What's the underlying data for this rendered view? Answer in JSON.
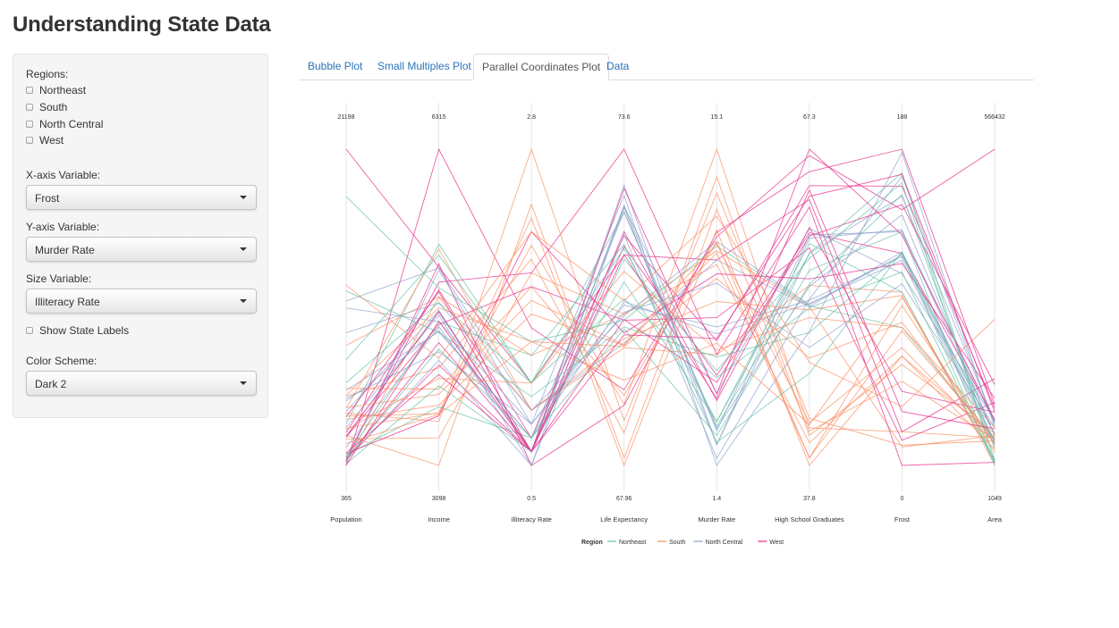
{
  "page": {
    "title": "Understanding State Data"
  },
  "sidebar": {
    "regions_label": "Regions:",
    "regions": [
      {
        "label": "Northeast",
        "checked": false
      },
      {
        "label": "South",
        "checked": false
      },
      {
        "label": "North Central",
        "checked": false
      },
      {
        "label": "West",
        "checked": false
      }
    ],
    "x_axis": {
      "label": "X-axis Variable:",
      "value": "Frost"
    },
    "y_axis": {
      "label": "Y-axis Variable:",
      "value": "Murder Rate"
    },
    "size": {
      "label": "Size Variable:",
      "value": "Illiteracy Rate"
    },
    "show_labels": {
      "label": "Show State Labels",
      "checked": false
    },
    "color_scheme": {
      "label": "Color Scheme:",
      "value": "Dark 2"
    }
  },
  "tabs": [
    {
      "label": "Bubble Plot",
      "active": false
    },
    {
      "label": "Small Multiples Plot",
      "active": false
    },
    {
      "label": "Parallel Coordinates Plot",
      "active": true
    },
    {
      "label": "Data",
      "active": false
    }
  ],
  "chart_data": {
    "type": "parallel_coordinates",
    "axes": [
      {
        "name": "Population",
        "min": "365",
        "max": "21198",
        "lo": 365,
        "hi": 21198
      },
      {
        "name": "Income",
        "min": "3098",
        "max": "6315",
        "lo": 3098,
        "hi": 6315
      },
      {
        "name": "Illiteracy Rate",
        "min": "0.5",
        "max": "2.8",
        "lo": 0.5,
        "hi": 2.8
      },
      {
        "name": "Life Expectancy",
        "min": "67.96",
        "max": "73.6",
        "lo": 67.96,
        "hi": 73.6
      },
      {
        "name": "Murder Rate",
        "min": "1.4",
        "max": "15.1",
        "lo": 1.4,
        "hi": 15.1
      },
      {
        "name": "High School Graduates",
        "min": "37.8",
        "max": "67.3",
        "lo": 37.8,
        "hi": 67.3
      },
      {
        "name": "Frost",
        "min": "0",
        "max": "188",
        "lo": 0,
        "hi": 188
      },
      {
        "name": "Area",
        "min": "1049",
        "max": "566432",
        "lo": 1049,
        "hi": 566432
      }
    ],
    "legend": {
      "title": "Region",
      "placement": "bottom",
      "entries": [
        {
          "name": "Northeast",
          "color": "#66c2a5"
        },
        {
          "name": "South",
          "color": "#fc8d62"
        },
        {
          "name": "North Central",
          "color": "#8da0cb"
        },
        {
          "name": "West",
          "color": "#e7298a"
        }
      ]
    },
    "series": [
      {
        "region": "South",
        "values": [
          3615,
          3624,
          2.1,
          69.05,
          15.1,
          41.3,
          20,
          50708
        ]
      },
      {
        "region": "West",
        "values": [
          365,
          6315,
          1.5,
          69.31,
          11.3,
          66.7,
          152,
          566432
        ]
      },
      {
        "region": "West",
        "values": [
          2212,
          4530,
          1.8,
          70.55,
          7.8,
          58.1,
          15,
          113417
        ]
      },
      {
        "region": "South",
        "values": [
          2110,
          3378,
          1.9,
          70.66,
          10.1,
          39.9,
          65,
          51945
        ]
      },
      {
        "region": "West",
        "values": [
          21198,
          5114,
          1.1,
          71.71,
          10.3,
          62.6,
          20,
          156361
        ]
      },
      {
        "region": "West",
        "values": [
          2541,
          4884,
          0.7,
          72.06,
          6.8,
          63.9,
          166,
          103766
        ]
      },
      {
        "region": "Northeast",
        "values": [
          3100,
          5348,
          1.1,
          72.48,
          3.1,
          56.0,
          139,
          4862
        ]
      },
      {
        "region": "South",
        "values": [
          579,
          4809,
          0.9,
          70.06,
          6.2,
          54.6,
          103,
          1982
        ]
      },
      {
        "region": "South",
        "values": [
          8277,
          4815,
          1.3,
          70.66,
          10.7,
          52.6,
          11,
          54090
        ]
      },
      {
        "region": "South",
        "values": [
          4931,
          4091,
          2.0,
          68.54,
          13.9,
          40.6,
          60,
          58073
        ]
      },
      {
        "region": "West",
        "values": [
          868,
          4963,
          1.9,
          73.6,
          6.2,
          61.9,
          0,
          6425
        ]
      },
      {
        "region": "West",
        "values": [
          813,
          4119,
          0.6,
          71.87,
          5.3,
          59.5,
          126,
          82677
        ]
      },
      {
        "region": "North Central",
        "values": [
          11197,
          5107,
          0.9,
          70.14,
          10.3,
          52.6,
          127,
          55748
        ]
      },
      {
        "region": "North Central",
        "values": [
          5313,
          4458,
          0.7,
          70.88,
          7.1,
          52.9,
          122,
          36097
        ]
      },
      {
        "region": "North Central",
        "values": [
          2861,
          4628,
          0.5,
          72.56,
          2.3,
          59.0,
          140,
          55941
        ]
      },
      {
        "region": "North Central",
        "values": [
          2280,
          4669,
          0.6,
          72.58,
          4.5,
          59.9,
          114,
          81787
        ]
      },
      {
        "region": "South",
        "values": [
          3387,
          3712,
          1.6,
          70.1,
          10.6,
          38.5,
          95,
          39650
        ]
      },
      {
        "region": "South",
        "values": [
          3806,
          3545,
          2.8,
          68.76,
          13.2,
          42.2,
          12,
          44930
        ]
      },
      {
        "region": "Northeast",
        "values": [
          1058,
          3694,
          0.7,
          70.39,
          2.7,
          54.7,
          161,
          30920
        ]
      },
      {
        "region": "South",
        "values": [
          4122,
          5299,
          0.9,
          70.22,
          8.5,
          52.3,
          101,
          9891
        ]
      },
      {
        "region": "Northeast",
        "values": [
          5814,
          4755,
          1.1,
          71.83,
          3.3,
          58.5,
          103,
          7826
        ]
      },
      {
        "region": "North Central",
        "values": [
          9111,
          4751,
          0.9,
          70.63,
          11.1,
          52.8,
          125,
          56817
        ]
      },
      {
        "region": "North Central",
        "values": [
          3921,
          4675,
          0.6,
          72.96,
          2.3,
          57.6,
          160,
          79289
        ]
      },
      {
        "region": "South",
        "values": [
          2341,
          3098,
          2.4,
          68.09,
          12.5,
          41.0,
          50,
          47296
        ]
      },
      {
        "region": "North Central",
        "values": [
          4767,
          4254,
          0.8,
          70.69,
          9.3,
          48.8,
          108,
          68995
        ]
      },
      {
        "region": "West",
        "values": [
          746,
          4347,
          0.6,
          70.56,
          5.0,
          59.2,
          155,
          145587
        ]
      },
      {
        "region": "North Central",
        "values": [
          1544,
          4508,
          0.6,
          72.6,
          2.9,
          59.3,
          139,
          76483
        ]
      },
      {
        "region": "West",
        "values": [
          590,
          5149,
          0.5,
          69.03,
          11.5,
          65.2,
          188,
          109889
        ]
      },
      {
        "region": "Northeast",
        "values": [
          812,
          4281,
          0.7,
          71.23,
          3.3,
          57.6,
          174,
          9027
        ]
      },
      {
        "region": "Northeast",
        "values": [
          7333,
          5237,
          1.1,
          70.93,
          5.2,
          52.5,
          115,
          7521
        ]
      },
      {
        "region": "West",
        "values": [
          1144,
          3601,
          2.2,
          70.32,
          9.7,
          55.2,
          120,
          121412
        ]
      },
      {
        "region": "Northeast",
        "values": [
          18076,
          4903,
          1.4,
          70.55,
          10.9,
          52.7,
          82,
          47831
        ]
      },
      {
        "region": "South",
        "values": [
          5441,
          3875,
          1.8,
          69.21,
          11.1,
          38.5,
          80,
          48798
        ]
      },
      {
        "region": "North Central",
        "values": [
          637,
          5087,
          0.8,
          72.78,
          1.4,
          50.3,
          186,
          69273
        ]
      },
      {
        "region": "North Central",
        "values": [
          10735,
          4561,
          0.8,
          70.82,
          7.4,
          53.2,
          124,
          40975
        ]
      },
      {
        "region": "South",
        "values": [
          2715,
          3983,
          1.1,
          71.42,
          6.4,
          51.6,
          82,
          68782
        ]
      },
      {
        "region": "West",
        "values": [
          2284,
          4660,
          0.6,
          72.13,
          4.2,
          60.0,
          44,
          96184
        ]
      },
      {
        "region": "Northeast",
        "values": [
          11860,
          4449,
          1.0,
          70.43,
          6.1,
          50.2,
          126,
          44966
        ]
      },
      {
        "region": "Northeast",
        "values": [
          931,
          4558,
          1.3,
          71.9,
          2.4,
          46.4,
          127,
          1049
        ]
      },
      {
        "region": "South",
        "values": [
          2816,
          3635,
          2.3,
          67.96,
          11.6,
          37.8,
          65,
          30225
        ]
      },
      {
        "region": "North Central",
        "values": [
          681,
          4167,
          0.5,
          72.08,
          1.7,
          53.3,
          172,
          75955
        ]
      },
      {
        "region": "South",
        "values": [
          4173,
          3821,
          1.7,
          70.11,
          11.0,
          41.8,
          70,
          41328
        ]
      },
      {
        "region": "South",
        "values": [
          12237,
          4188,
          2.2,
          70.9,
          12.2,
          47.4,
          35,
          262134
        ]
      },
      {
        "region": "West",
        "values": [
          1203,
          4022,
          0.6,
          72.9,
          4.5,
          67.3,
          137,
          82096
        ]
      },
      {
        "region": "Northeast",
        "values": [
          472,
          3907,
          0.6,
          71.64,
          5.5,
          57.1,
          168,
          9267
        ]
      },
      {
        "region": "South",
        "values": [
          4981,
          4701,
          1.4,
          70.08,
          9.5,
          47.8,
          85,
          39780
        ]
      },
      {
        "region": "West",
        "values": [
          3559,
          4864,
          0.6,
          71.72,
          4.3,
          63.5,
          32,
          66570
        ]
      },
      {
        "region": "South",
        "values": [
          1799,
          3617,
          1.4,
          69.48,
          6.7,
          41.6,
          100,
          24070
        ]
      },
      {
        "region": "North Central",
        "values": [
          4589,
          4468,
          0.7,
          72.48,
          3.0,
          54.5,
          149,
          54464
        ]
      },
      {
        "region": "West",
        "values": [
          376,
          4566,
          0.6,
          70.29,
          6.9,
          62.9,
          173,
          97203
        ]
      }
    ]
  }
}
